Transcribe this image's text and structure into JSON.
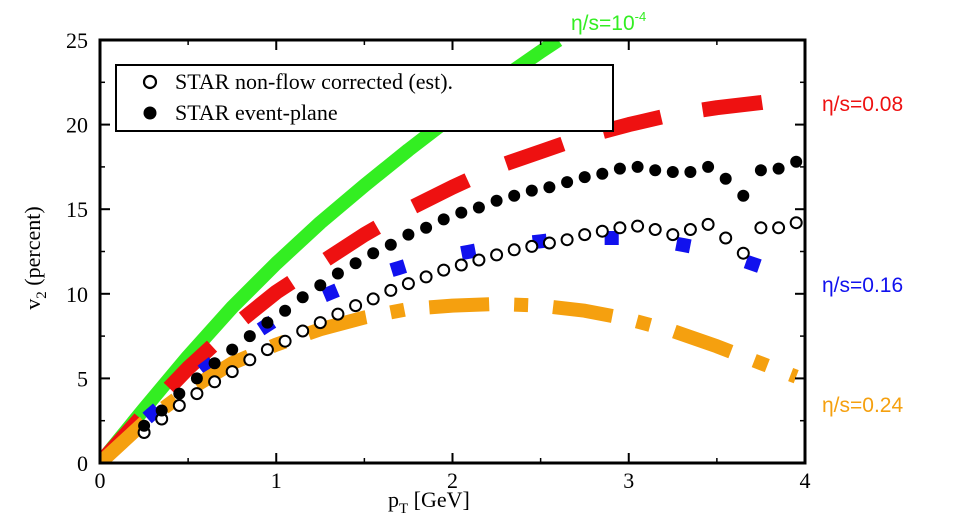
{
  "chart_data": {
    "type": "line",
    "xlabel": "p_T [GeV]",
    "ylabel": "v_2 (percent)",
    "xlim": [
      0,
      4
    ],
    "ylim": [
      0,
      25
    ],
    "xticks": [
      "0",
      "1",
      "2",
      "3",
      "4"
    ],
    "yticks": [
      "0",
      "5",
      "10",
      "15",
      "20",
      "25"
    ],
    "legend": {
      "placement": "top-left",
      "entries": [
        {
          "marker": "open-circle",
          "label": "STAR non-flow corrected (est)."
        },
        {
          "marker": "filled-circle",
          "label": "STAR event-plane"
        }
      ]
    },
    "series": [
      {
        "label": "η/s=10⁻⁴",
        "style": "solid",
        "color": "#33ee22",
        "x": [
          0,
          0.25,
          0.5,
          0.75,
          1.0,
          1.25,
          1.5,
          1.75,
          2.0,
          2.25,
          2.5,
          2.6
        ],
        "y": [
          0,
          3.2,
          6.3,
          9.2,
          11.8,
          14.2,
          16.4,
          18.5,
          20.5,
          22.5,
          24.3,
          25
        ]
      },
      {
        "label": "η/s=0.08",
        "style": "long-dash",
        "color": "#ee1111",
        "x": [
          0,
          0.25,
          0.5,
          0.75,
          1.0,
          1.25,
          1.5,
          1.75,
          2.0,
          2.25,
          2.5,
          2.75,
          3.0,
          3.25,
          3.5,
          3.75,
          3.95
        ],
        "y": [
          0,
          2.9,
          5.6,
          8.0,
          10.1,
          11.8,
          13.5,
          15.0,
          16.3,
          17.5,
          18.4,
          19.3,
          20.0,
          20.6,
          21.0,
          21.3,
          21.6
        ]
      },
      {
        "label": "η/s=0.16",
        "style": "dashed",
        "color": "#1111ee",
        "x": [
          0,
          0.25,
          0.5,
          0.75,
          1.0,
          1.25,
          1.5,
          1.75,
          2.0,
          2.25,
          2.5,
          2.75,
          3.0,
          3.25,
          3.5,
          3.75,
          3.95
        ],
        "y": [
          0,
          2.5,
          4.8,
          6.8,
          8.5,
          9.8,
          10.9,
          11.7,
          12.3,
          12.8,
          13.1,
          13.3,
          13.3,
          13.0,
          12.5,
          11.6,
          10.7
        ]
      },
      {
        "label": "η/s=0.24",
        "style": "dash-dot",
        "color": "#f5a00f",
        "x": [
          0,
          0.25,
          0.5,
          0.75,
          1.0,
          1.25,
          1.5,
          1.75,
          2.0,
          2.25,
          2.5,
          2.75,
          3.0,
          3.25,
          3.5,
          3.75,
          3.95
        ],
        "y": [
          0,
          2.4,
          4.3,
          5.9,
          7.0,
          7.9,
          8.6,
          9.1,
          9.3,
          9.4,
          9.3,
          9.0,
          8.5,
          7.8,
          6.9,
          5.9,
          5.1
        ]
      }
    ],
    "data_points": [
      {
        "label": "STAR non-flow corrected (est).",
        "marker": "open-circle",
        "x": [
          0.25,
          0.35,
          0.45,
          0.55,
          0.65,
          0.75,
          0.85,
          0.95,
          1.05,
          1.15,
          1.25,
          1.35,
          1.45,
          1.55,
          1.65,
          1.75,
          1.85,
          1.95,
          2.05,
          2.15,
          2.25,
          2.35,
          2.45,
          2.55,
          2.65,
          2.75,
          2.85,
          2.95,
          3.05,
          3.15,
          3.25,
          3.35,
          3.45,
          3.55,
          3.65,
          3.75,
          3.85,
          3.95
        ],
        "y": [
          1.8,
          2.6,
          3.4,
          4.1,
          4.8,
          5.4,
          6.1,
          6.7,
          7.2,
          7.8,
          8.3,
          8.8,
          9.3,
          9.7,
          10.2,
          10.6,
          11.0,
          11.4,
          11.7,
          12.0,
          12.3,
          12.6,
          12.8,
          13.0,
          13.2,
          13.5,
          13.7,
          13.9,
          14.0,
          13.8,
          13.5,
          13.8,
          14.1,
          13.3,
          12.4,
          13.9,
          13.9,
          14.2
        ]
      },
      {
        "label": "STAR event-plane",
        "marker": "filled-circle",
        "x": [
          0.25,
          0.35,
          0.45,
          0.55,
          0.65,
          0.75,
          0.85,
          0.95,
          1.05,
          1.15,
          1.25,
          1.35,
          1.45,
          1.55,
          1.65,
          1.75,
          1.85,
          1.95,
          2.05,
          2.15,
          2.25,
          2.35,
          2.45,
          2.55,
          2.65,
          2.75,
          2.85,
          2.95,
          3.05,
          3.15,
          3.25,
          3.35,
          3.45,
          3.55,
          3.65,
          3.75,
          3.85,
          3.95
        ],
        "y": [
          2.2,
          3.1,
          4.1,
          5.0,
          5.9,
          6.7,
          7.5,
          8.3,
          9.0,
          9.8,
          10.5,
          11.2,
          11.8,
          12.4,
          12.9,
          13.5,
          13.9,
          14.4,
          14.8,
          15.1,
          15.5,
          15.8,
          16.1,
          16.3,
          16.6,
          16.9,
          17.1,
          17.4,
          17.5,
          17.3,
          17.2,
          17.2,
          17.5,
          16.8,
          15.8,
          17.3,
          17.4,
          17.8
        ]
      }
    ]
  }
}
